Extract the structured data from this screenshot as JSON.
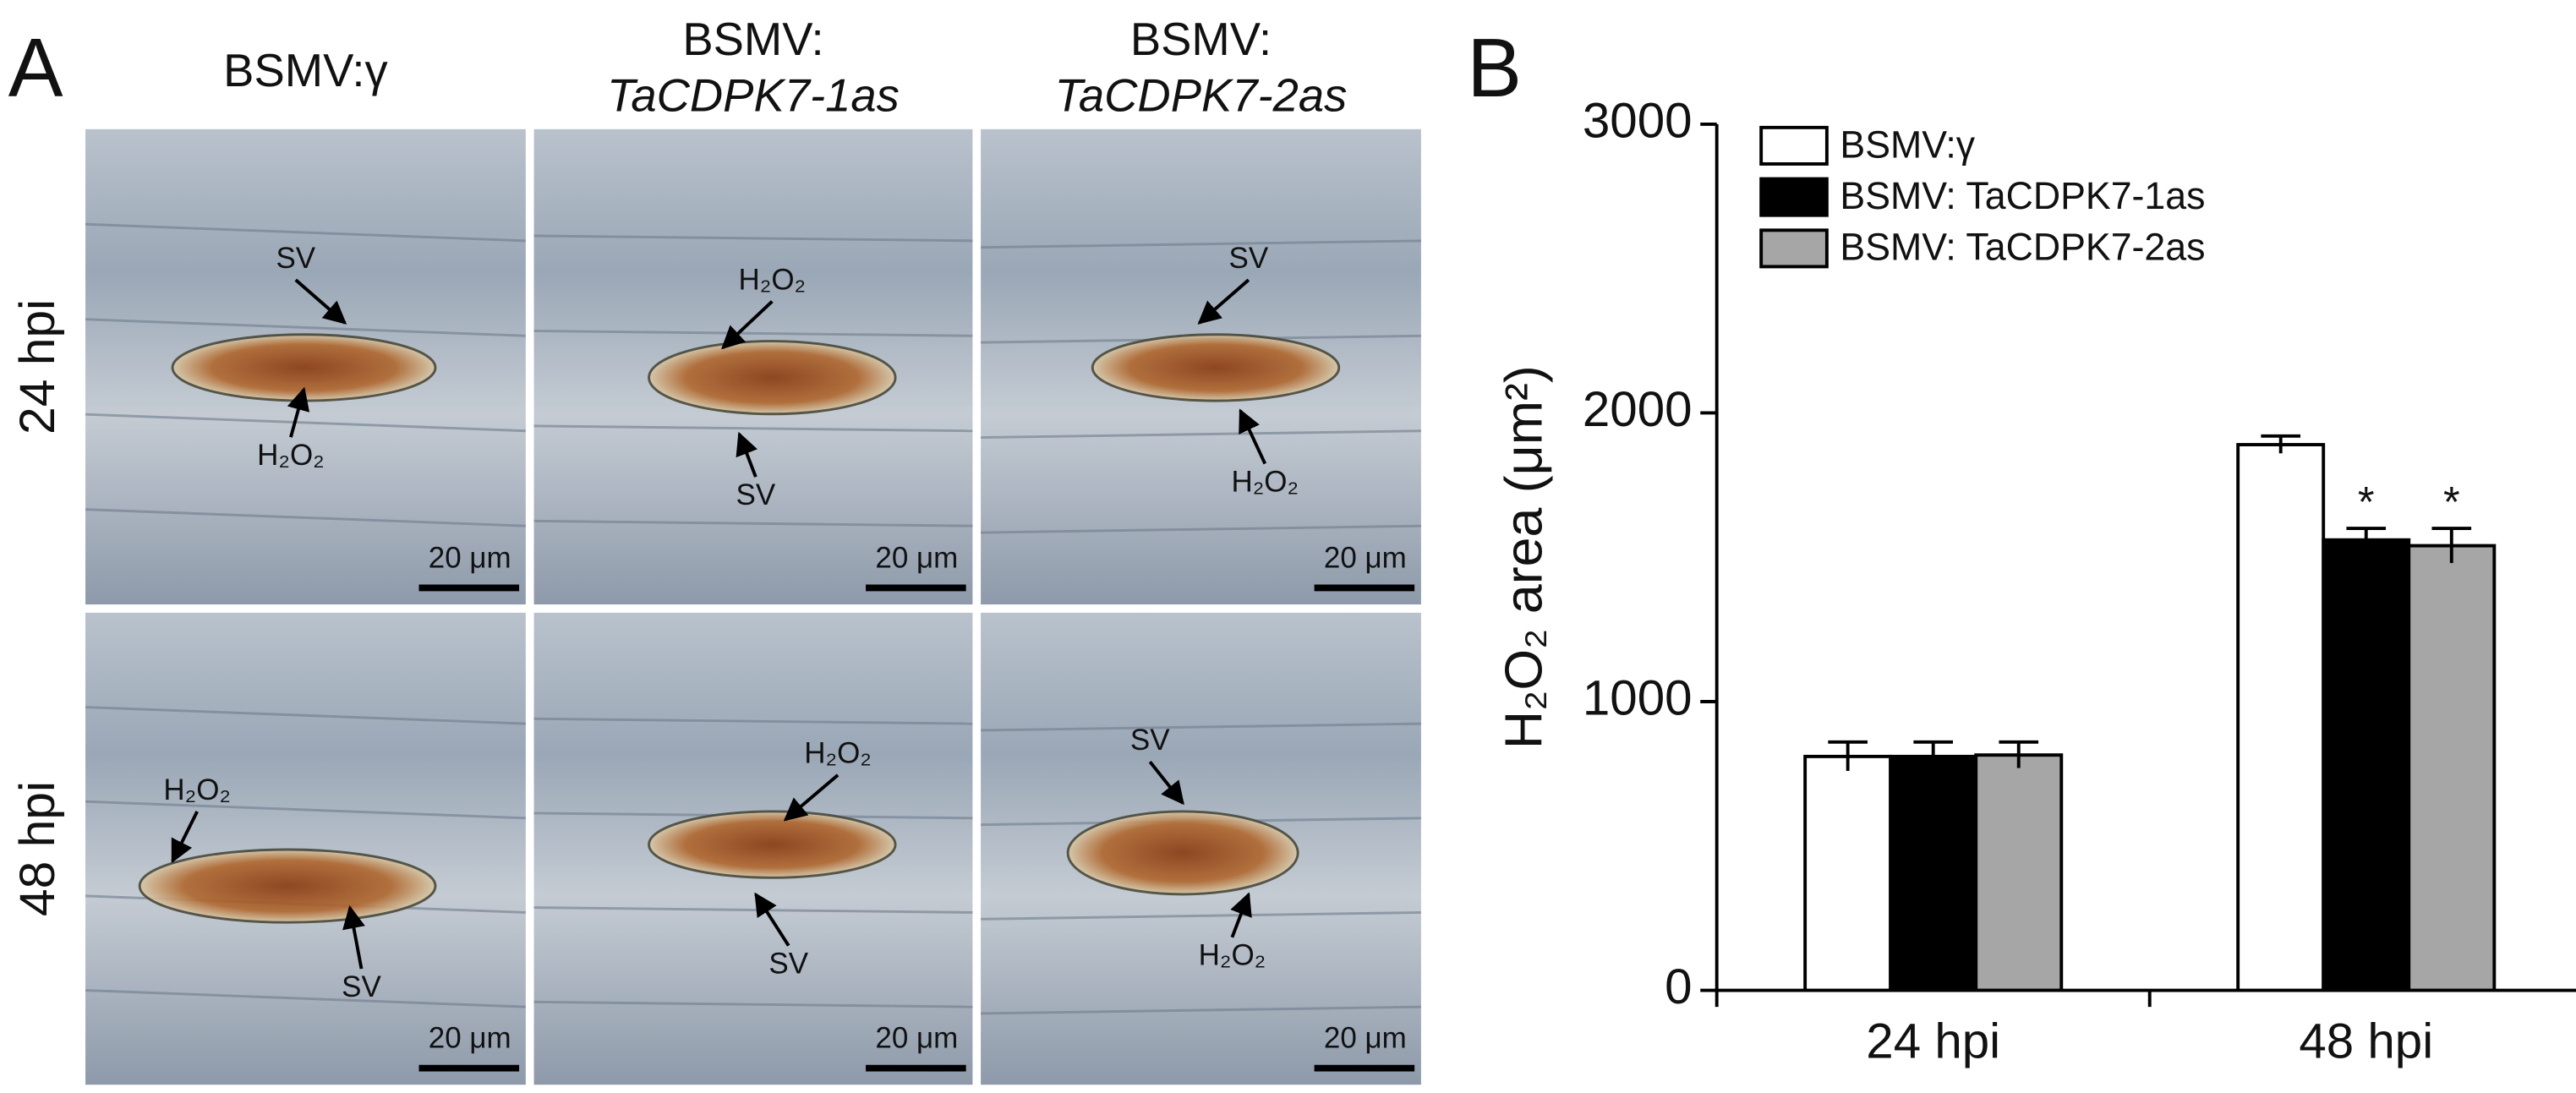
{
  "panel_a": {
    "label": "A",
    "columns": [
      [
        "BSMV:γ"
      ],
      [
        "BSMV:",
        "TaCDPK7-1as"
      ],
      [
        "BSMV:",
        "TaCDPK7-2as"
      ]
    ],
    "rows": [
      "24 hpi",
      "48 hpi"
    ],
    "images": [
      [
        {
          "labels": [
            "SV",
            "H₂O₂"
          ],
          "scale": "20 μm"
        },
        {
          "labels": [
            "H₂O₂",
            "SV"
          ],
          "scale": "20 μm"
        },
        {
          "labels": [
            "SV",
            "H₂O₂"
          ],
          "scale": "20 μm"
        }
      ],
      [
        {
          "labels": [
            "H₂O₂",
            "SV"
          ],
          "scale": "20 μm"
        },
        {
          "labels": [
            "H₂O₂",
            "SV"
          ],
          "scale": "20 μm"
        },
        {
          "labels": [
            "SV",
            "H₂O₂"
          ],
          "scale": "20 μm"
        }
      ]
    ]
  },
  "chart_data": {
    "type": "bar",
    "panel_label": "B",
    "y_label": "H₂O₂ area (μm²)",
    "categories": [
      "24 hpi",
      "48 hpi"
    ],
    "series": [
      {
        "name": "BSMV:γ",
        "color": "#ffffff",
        "values": [
          810,
          1890
        ],
        "errors": [
          50,
          30
        ]
      },
      {
        "name": "BSMV: TaCDPK7-1as",
        "color": "#000000",
        "values": [
          810,
          1560
        ],
        "errors": [
          50,
          40
        ],
        "significance": [
          null,
          "*"
        ]
      },
      {
        "name": "BSMV: TaCDPK7-2as",
        "color": "#a6a6a6",
        "values": [
          815,
          1540
        ],
        "errors": [
          45,
          60
        ],
        "significance": [
          null,
          "*"
        ]
      }
    ],
    "ylim": [
      0,
      3000
    ],
    "yticks": [
      0,
      1000,
      2000,
      3000
    ]
  }
}
